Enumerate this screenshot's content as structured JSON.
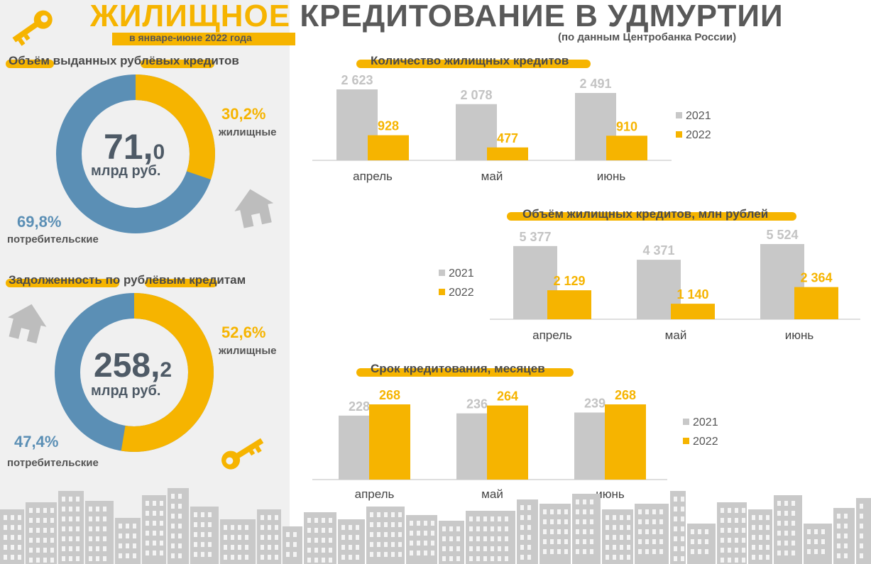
{
  "header": {
    "title_accent": "ЖИЛИЩНОЕ",
    "title_rest": "КРЕДИТОВАНИЕ В УДМУРТИИ",
    "subtitle": "в январе-июне 2022 года",
    "source": "(по данным Центробанка России)"
  },
  "colors": {
    "accent": "#f6b400",
    "grey_bar": "#c8c8c8",
    "blue": "#5b8fb5",
    "panel": "#f0f0f0",
    "icon_grey": "#bdbdbd"
  },
  "donut_volume": {
    "title_parts": [
      "Объём",
      "выданных",
      "рублёвых",
      "кредитов"
    ],
    "center_int": "71,",
    "center_dec": "0",
    "center_unit": "млрд руб.",
    "housing_pct_text": "30,2%",
    "housing_label": "жилищные",
    "consumer_pct_text": "69,8%",
    "consumer_label": "потребительские",
    "housing_share": 30.2
  },
  "donut_debt": {
    "title_parts": [
      "Задолженность",
      "по",
      "рублёвым",
      "кредитам"
    ],
    "center_int": "258,",
    "center_dec": "2",
    "center_unit": "млрд руб.",
    "housing_pct_text": "52,6%",
    "housing_label": "жилищные",
    "consumer_pct_text": "47,4%",
    "consumer_label": "потребительские",
    "housing_share": 52.6
  },
  "chart_data": [
    {
      "type": "bar",
      "title": "Количество жилищных кредитов",
      "categories": [
        "апрель",
        "май",
        "июнь"
      ],
      "series": [
        {
          "name": "2021",
          "values": [
            2623,
            2078,
            2491
          ],
          "labels": [
            "2 623",
            "2 078",
            "2 491"
          ]
        },
        {
          "name": "2022",
          "values": [
            928,
            477,
            910
          ],
          "labels": [
            "928",
            "477",
            "910"
          ]
        }
      ]
    },
    {
      "type": "bar",
      "title": "Объём жилищных кредитов, млн рублей",
      "categories": [
        "апрель",
        "май",
        "июнь"
      ],
      "series": [
        {
          "name": "2021",
          "values": [
            5377,
            4371,
            5524
          ],
          "labels": [
            "5 377",
            "4 371",
            "5 524"
          ]
        },
        {
          "name": "2022",
          "values": [
            2129,
            1140,
            2364
          ],
          "labels": [
            "2 129",
            "1 140",
            "2 364"
          ]
        }
      ]
    },
    {
      "type": "bar",
      "title": "Срок кредитования, месяцев",
      "categories": [
        "апрель",
        "май",
        "июнь"
      ],
      "series": [
        {
          "name": "2021",
          "values": [
            228,
            236,
            239
          ],
          "labels": [
            "228",
            "236",
            "239"
          ]
        },
        {
          "name": "2022",
          "values": [
            268,
            264,
            268
          ],
          "labels": [
            "268",
            "264",
            "268"
          ]
        }
      ]
    }
  ]
}
